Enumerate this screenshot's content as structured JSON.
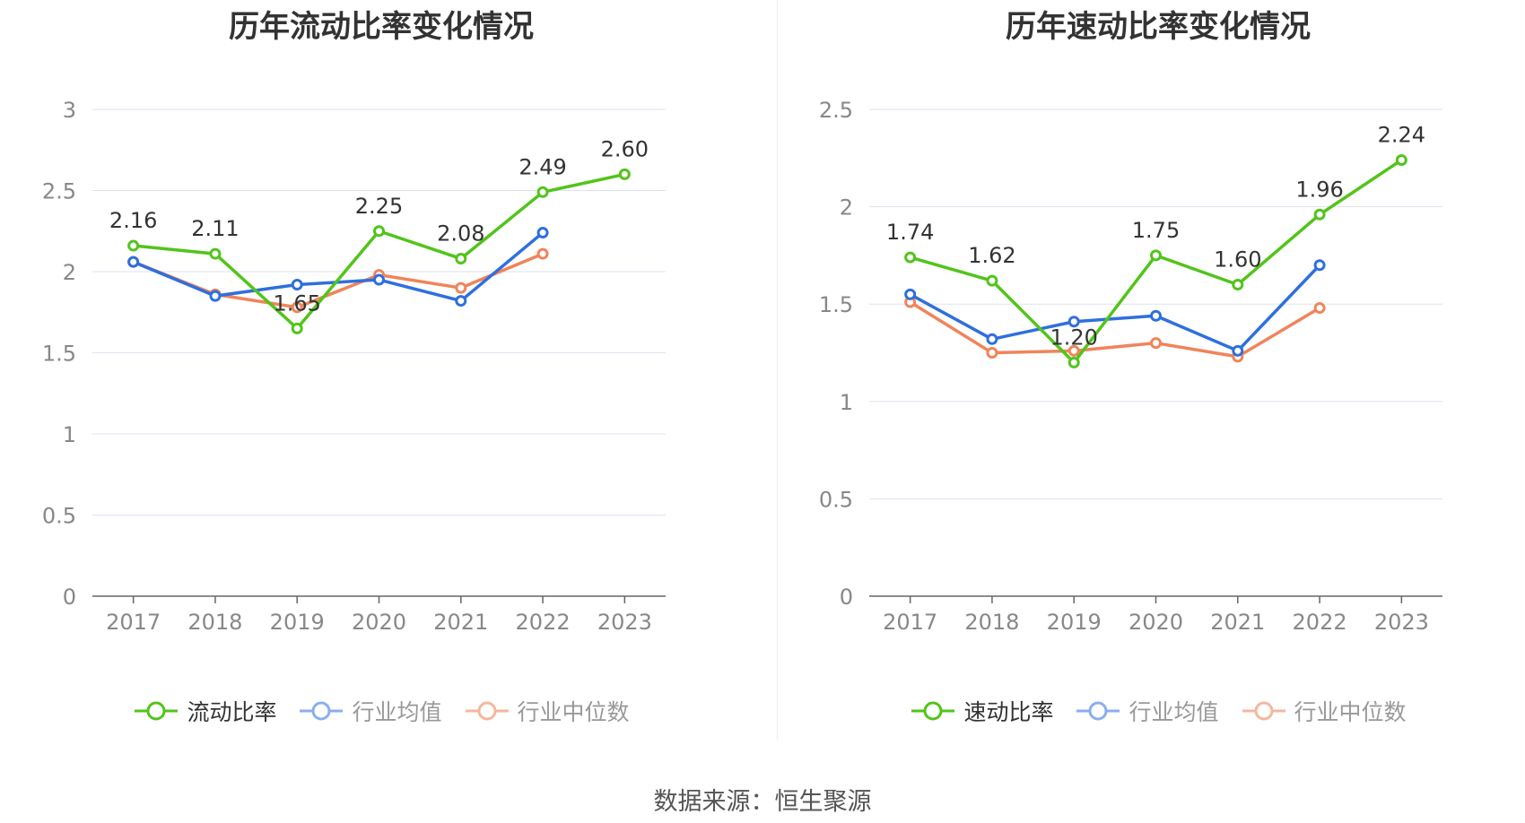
{
  "chart_data": [
    {
      "type": "line",
      "title": "历年流动比率变化情况",
      "x": [
        "2017",
        "2018",
        "2019",
        "2020",
        "2021",
        "2022",
        "2023"
      ],
      "ylim": [
        0,
        3
      ],
      "yticks": [
        0,
        0.5,
        1,
        1.5,
        2,
        2.5,
        3
      ],
      "ytick_labels": [
        "0",
        "0.5",
        "1",
        "1.5",
        "2",
        "2.5",
        "3"
      ],
      "grid": true,
      "legend_position": "bottom",
      "series": [
        {
          "name": "流动比率",
          "color": "#52c41a",
          "values": [
            2.16,
            2.11,
            1.65,
            2.25,
            2.08,
            2.49,
            2.6
          ],
          "labels": [
            "2.16",
            "2.11",
            "1.65",
            "2.25",
            "2.08",
            "2.49",
            "2.60"
          ]
        },
        {
          "name": "行业均值",
          "color": "#2f6fde",
          "values": [
            2.06,
            1.85,
            1.92,
            1.95,
            1.82,
            2.24,
            null
          ]
        },
        {
          "name": "行业中位数",
          "color": "#f0845a",
          "values": [
            2.06,
            1.86,
            1.78,
            1.98,
            1.9,
            2.11,
            null
          ]
        }
      ]
    },
    {
      "type": "line",
      "title": "历年速动比率变化情况",
      "x": [
        "2017",
        "2018",
        "2019",
        "2020",
        "2021",
        "2022",
        "2023"
      ],
      "ylim": [
        0,
        2.5
      ],
      "yticks": [
        0,
        0.5,
        1,
        1.5,
        2,
        2.5
      ],
      "ytick_labels": [
        "0",
        "0.5",
        "1",
        "1.5",
        "2",
        "2.5"
      ],
      "grid": true,
      "legend_position": "bottom",
      "series": [
        {
          "name": "速动比率",
          "color": "#52c41a",
          "values": [
            1.74,
            1.62,
            1.2,
            1.75,
            1.6,
            1.96,
            2.24
          ],
          "labels": [
            "1.74",
            "1.62",
            "1.20",
            "1.75",
            "1.60",
            "1.96",
            "2.24"
          ]
        },
        {
          "name": "行业均值",
          "color": "#2f6fde",
          "values": [
            1.55,
            1.32,
            1.41,
            1.44,
            1.26,
            1.7,
            null
          ]
        },
        {
          "name": "行业中位数",
          "color": "#f0845a",
          "values": [
            1.51,
            1.25,
            1.26,
            1.3,
            1.23,
            1.48,
            null
          ]
        }
      ]
    }
  ],
  "source": "数据来源：恒生聚源"
}
